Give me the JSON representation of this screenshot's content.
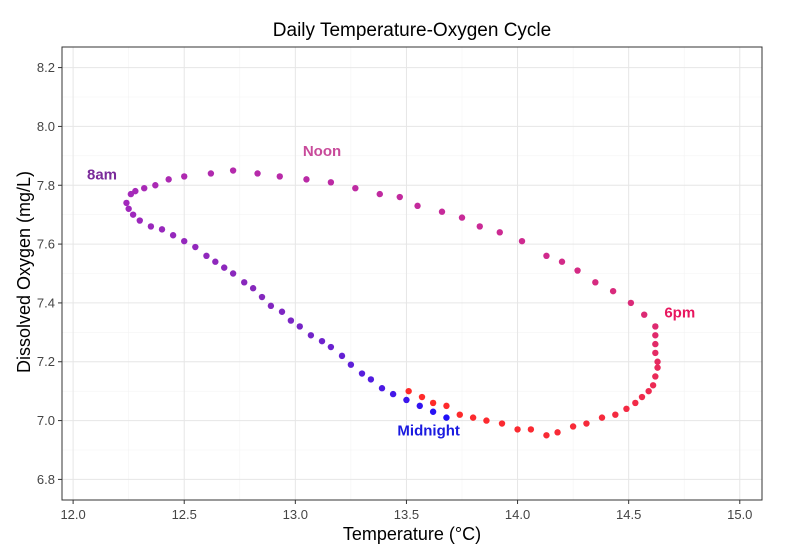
{
  "chart_data": {
    "type": "scatter",
    "title": "Daily Temperature-Oxygen Cycle",
    "xlabel": "Temperature (°C)",
    "ylabel": "Dissolved Oxygen (mg/L)",
    "xlim": [
      11.95,
      15.1
    ],
    "ylim": [
      6.73,
      8.27
    ],
    "x_ticks": [
      12.0,
      12.5,
      13.0,
      13.5,
      14.0,
      14.5,
      15.0
    ],
    "x_tick_labels": [
      "12.0",
      "12.5",
      "13.0",
      "13.5",
      "14.0",
      "14.5",
      "15.0"
    ],
    "y_ticks": [
      6.8,
      7.0,
      7.2,
      7.4,
      7.6,
      7.8,
      8.0,
      8.2
    ],
    "y_tick_labels": [
      "6.8",
      "7.0",
      "7.2",
      "7.4",
      "7.6",
      "7.8",
      "8.0",
      "8.2"
    ],
    "grid": true,
    "legend": "none",
    "colors": {
      "midnight": "#1a00ff",
      "morning": "#7a22b8",
      "noon": "#c8389c",
      "evening": "#f01866",
      "late": "#ff2a2a"
    },
    "annotations": [
      {
        "text": "8am",
        "x": 12.13,
        "y": 7.82,
        "color": "#7a2a9a"
      },
      {
        "text": "Noon",
        "x": 13.12,
        "y": 7.9,
        "color": "#c84a9a"
      },
      {
        "text": "6pm",
        "x": 14.73,
        "y": 7.35,
        "color": "#e8165e"
      },
      {
        "text": "Midnight",
        "x": 13.6,
        "y": 6.95,
        "color": "#1a1ae0"
      }
    ],
    "points": [
      {
        "x": 13.68,
        "y": 7.01,
        "c": "#2010f8"
      },
      {
        "x": 13.62,
        "y": 7.03,
        "c": "#2812f4"
      },
      {
        "x": 13.56,
        "y": 7.05,
        "c": "#3214f0"
      },
      {
        "x": 13.5,
        "y": 7.07,
        "c": "#3c16ec"
      },
      {
        "x": 13.44,
        "y": 7.09,
        "c": "#4418e8"
      },
      {
        "x": 13.39,
        "y": 7.11,
        "c": "#4c1ae4"
      },
      {
        "x": 13.34,
        "y": 7.14,
        "c": "#521ce0"
      },
      {
        "x": 13.3,
        "y": 7.16,
        "c": "#581edc"
      },
      {
        "x": 13.25,
        "y": 7.19,
        "c": "#5e20d8"
      },
      {
        "x": 13.21,
        "y": 7.22,
        "c": "#6420d4"
      },
      {
        "x": 13.16,
        "y": 7.25,
        "c": "#6a22d0"
      },
      {
        "x": 13.12,
        "y": 7.27,
        "c": "#6e22cc"
      },
      {
        "x": 13.07,
        "y": 7.29,
        "c": "#7224c8"
      },
      {
        "x": 13.02,
        "y": 7.32,
        "c": "#7624c6"
      },
      {
        "x": 12.98,
        "y": 7.34,
        "c": "#7a26c4"
      },
      {
        "x": 12.94,
        "y": 7.37,
        "c": "#7e26c2"
      },
      {
        "x": 12.89,
        "y": 7.39,
        "c": "#8226c0"
      },
      {
        "x": 12.85,
        "y": 7.42,
        "c": "#8428be"
      },
      {
        "x": 12.81,
        "y": 7.45,
        "c": "#8628bc"
      },
      {
        "x": 12.77,
        "y": 7.47,
        "c": "#8828bc"
      },
      {
        "x": 12.72,
        "y": 7.5,
        "c": "#8a28bc"
      },
      {
        "x": 12.68,
        "y": 7.52,
        "c": "#8c28bc"
      },
      {
        "x": 12.64,
        "y": 7.54,
        "c": "#8e28bc"
      },
      {
        "x": 12.6,
        "y": 7.56,
        "c": "#9028bc"
      },
      {
        "x": 12.55,
        "y": 7.59,
        "c": "#9228bc"
      },
      {
        "x": 12.5,
        "y": 7.61,
        "c": "#9428bc"
      },
      {
        "x": 12.45,
        "y": 7.63,
        "c": "#9628bc"
      },
      {
        "x": 12.4,
        "y": 7.65,
        "c": "#9828bc"
      },
      {
        "x": 12.35,
        "y": 7.66,
        "c": "#9a28bc"
      },
      {
        "x": 12.3,
        "y": 7.68,
        "c": "#9c28bc"
      },
      {
        "x": 12.27,
        "y": 7.7,
        "c": "#9e28bc"
      },
      {
        "x": 12.25,
        "y": 7.72,
        "c": "#a028bc"
      },
      {
        "x": 12.24,
        "y": 7.74,
        "c": "#a228bc"
      },
      {
        "x": 12.26,
        "y": 7.77,
        "c": "#a42aba"
      },
      {
        "x": 12.28,
        "y": 7.78,
        "c": "#a62ab8"
      },
      {
        "x": 12.32,
        "y": 7.79,
        "c": "#a82ab6"
      },
      {
        "x": 12.37,
        "y": 7.8,
        "c": "#aa2ab4"
      },
      {
        "x": 12.43,
        "y": 7.82,
        "c": "#ac2ab2"
      },
      {
        "x": 12.5,
        "y": 7.83,
        "c": "#ae2ab0"
      },
      {
        "x": 12.62,
        "y": 7.84,
        "c": "#b02aae"
      },
      {
        "x": 12.72,
        "y": 7.85,
        "c": "#b42aac"
      },
      {
        "x": 12.83,
        "y": 7.84,
        "c": "#b62aaa"
      },
      {
        "x": 12.93,
        "y": 7.83,
        "c": "#b82aa8"
      },
      {
        "x": 13.05,
        "y": 7.82,
        "c": "#ba2aa6"
      },
      {
        "x": 13.16,
        "y": 7.81,
        "c": "#bc2aa4"
      },
      {
        "x": 13.27,
        "y": 7.79,
        "c": "#be2aa2"
      },
      {
        "x": 13.38,
        "y": 7.77,
        "c": "#c02aa0"
      },
      {
        "x": 13.47,
        "y": 7.76,
        "c": "#c22a9e"
      },
      {
        "x": 13.55,
        "y": 7.73,
        "c": "#c42a9c"
      },
      {
        "x": 13.66,
        "y": 7.71,
        "c": "#c62a9a"
      },
      {
        "x": 13.75,
        "y": 7.69,
        "c": "#c82a98"
      },
      {
        "x": 13.83,
        "y": 7.66,
        "c": "#ca2a96"
      },
      {
        "x": 13.92,
        "y": 7.64,
        "c": "#cc2a92"
      },
      {
        "x": 14.02,
        "y": 7.61,
        "c": "#ce2a90"
      },
      {
        "x": 14.13,
        "y": 7.56,
        "c": "#d02a8c"
      },
      {
        "x": 14.2,
        "y": 7.54,
        "c": "#d22a88"
      },
      {
        "x": 14.27,
        "y": 7.51,
        "c": "#d42a84"
      },
      {
        "x": 14.35,
        "y": 7.47,
        "c": "#d62a80"
      },
      {
        "x": 14.43,
        "y": 7.44,
        "c": "#d82a7c"
      },
      {
        "x": 14.51,
        "y": 7.4,
        "c": "#da2a78"
      },
      {
        "x": 14.57,
        "y": 7.36,
        "c": "#dc2a74"
      },
      {
        "x": 14.62,
        "y": 7.32,
        "c": "#de2a70"
      },
      {
        "x": 14.62,
        "y": 7.29,
        "c": "#e02a6c"
      },
      {
        "x": 14.62,
        "y": 7.26,
        "c": "#e22a68"
      },
      {
        "x": 14.62,
        "y": 7.23,
        "c": "#e42a64"
      },
      {
        "x": 14.63,
        "y": 7.2,
        "c": "#e62a60"
      },
      {
        "x": 14.63,
        "y": 7.18,
        "c": "#e82a5c"
      },
      {
        "x": 14.62,
        "y": 7.15,
        "c": "#ea2a58"
      },
      {
        "x": 14.61,
        "y": 7.12,
        "c": "#ec2a54"
      },
      {
        "x": 14.59,
        "y": 7.1,
        "c": "#ee2a50"
      },
      {
        "x": 14.56,
        "y": 7.08,
        "c": "#f02a4c"
      },
      {
        "x": 14.53,
        "y": 7.06,
        "c": "#f22a48"
      },
      {
        "x": 14.49,
        "y": 7.04,
        "c": "#f42a44"
      },
      {
        "x": 14.44,
        "y": 7.02,
        "c": "#f42a40"
      },
      {
        "x": 14.38,
        "y": 7.01,
        "c": "#f62a3c"
      },
      {
        "x": 14.31,
        "y": 6.99,
        "c": "#f62a3a"
      },
      {
        "x": 14.25,
        "y": 6.98,
        "c": "#f82a38"
      },
      {
        "x": 14.18,
        "y": 6.96,
        "c": "#f82a36"
      },
      {
        "x": 14.13,
        "y": 6.95,
        "c": "#f82a34"
      },
      {
        "x": 14.06,
        "y": 6.97,
        "c": "#fa2a32"
      },
      {
        "x": 14.0,
        "y": 6.97,
        "c": "#fa2a30"
      },
      {
        "x": 13.93,
        "y": 6.99,
        "c": "#fa2a30"
      },
      {
        "x": 13.86,
        "y": 7.0,
        "c": "#fc2a2e"
      },
      {
        "x": 13.8,
        "y": 7.01,
        "c": "#fc2a2e"
      },
      {
        "x": 13.74,
        "y": 7.02,
        "c": "#fc2a2c"
      },
      {
        "x": 13.68,
        "y": 7.05,
        "c": "#fe2a2c"
      },
      {
        "x": 13.62,
        "y": 7.06,
        "c": "#fe2a2a"
      },
      {
        "x": 13.57,
        "y": 7.08,
        "c": "#ff2a2a"
      },
      {
        "x": 13.51,
        "y": 7.1,
        "c": "#ff2a2a"
      }
    ]
  }
}
